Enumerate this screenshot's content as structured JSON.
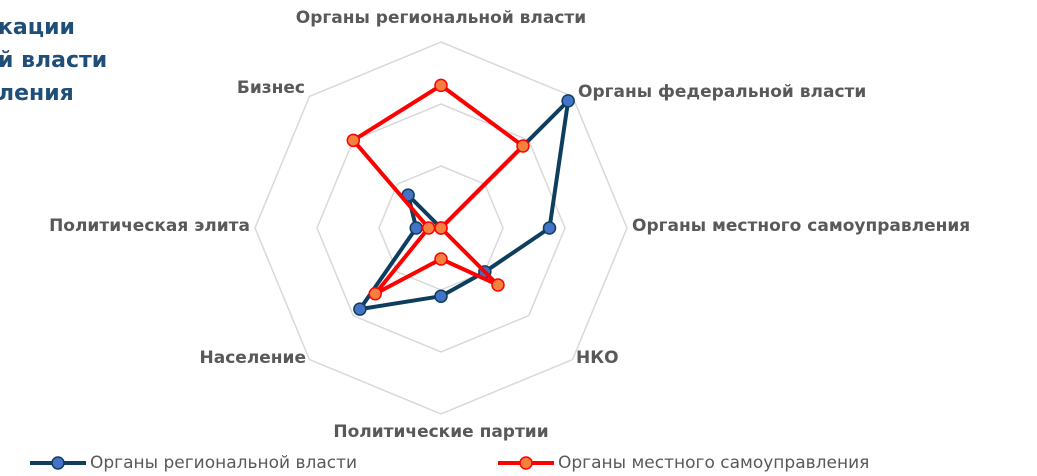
{
  "chart_data": {
    "type": "radar",
    "title_lines": [
      "кации",
      "й власти",
      "ления"
    ],
    "categories": [
      "Органы региональной власти",
      "Органы федеральной власти",
      "Органы местного самоуправления",
      "НКО",
      "Политические партии",
      "Население",
      "Политическая элита",
      "Бизнес"
    ],
    "series": [
      {
        "name": "Органы региональной власти",
        "color": "#0e3e5e",
        "marker_color": "#4472c4",
        "values": [
          0,
          2.9,
          1.75,
          1.0,
          1.1,
          1.85,
          0.4,
          0.75
        ]
      },
      {
        "name": "Органы местного самоуправления",
        "color": "#ff0000",
        "marker_color": "#f4813f",
        "values": [
          2.3,
          1.87,
          0,
          1.3,
          0.5,
          1.5,
          0.2,
          2.0
        ]
      }
    ],
    "ylim": [
      0,
      3
    ],
    "yticks": [
      1,
      2,
      3
    ],
    "grid": true,
    "legend": "bottom"
  }
}
